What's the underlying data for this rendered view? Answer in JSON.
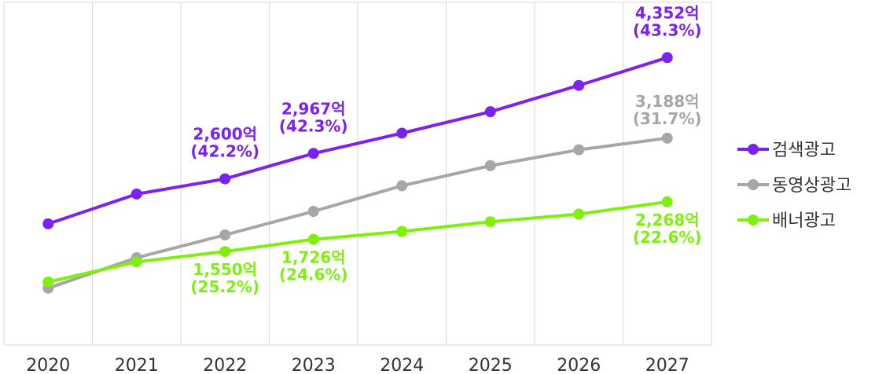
{
  "chart_data": {
    "type": "line",
    "x": [
      "2020",
      "2021",
      "2022",
      "2023",
      "2024",
      "2025",
      "2026",
      "2027"
    ],
    "grid": "vertical",
    "legend_position": "right",
    "series": [
      {
        "name": "검색광고",
        "color": "#7b22f0",
        "values": [
          1950,
          2380,
          2600,
          2967,
          3260,
          3570,
          3950,
          4352
        ]
      },
      {
        "name": "동영상광고",
        "color": "#a6a6a6",
        "values": [
          1020,
          1460,
          1790,
          2130,
          2500,
          2790,
          3020,
          3188
        ]
      },
      {
        "name": "배너광고",
        "color": "#7fef10",
        "values": [
          1110,
          1400,
          1550,
          1726,
          1840,
          1980,
          2090,
          2268
        ]
      }
    ],
    "annotations": [
      {
        "series": 0,
        "index": 2,
        "line1": "2,600억",
        "line2": "(42.2%)"
      },
      {
        "series": 0,
        "index": 3,
        "line1": "2,967억",
        "line2": "(42.3%)"
      },
      {
        "series": 0,
        "index": 7,
        "line1": "4,352억",
        "line2": "(43.3%)"
      },
      {
        "series": 1,
        "index": 7,
        "line1": "3,188억",
        "line2": "(31.7%)"
      },
      {
        "series": 2,
        "index": 2,
        "line1": "1,550억",
        "line2": "(25.2%)"
      },
      {
        "series": 2,
        "index": 3,
        "line1": "1,726억",
        "line2": "(24.6%)"
      },
      {
        "series": 2,
        "index": 7,
        "line1": "2,268억",
        "line2": "(22.6%)"
      }
    ],
    "ylim": [
      200,
      5150
    ]
  }
}
